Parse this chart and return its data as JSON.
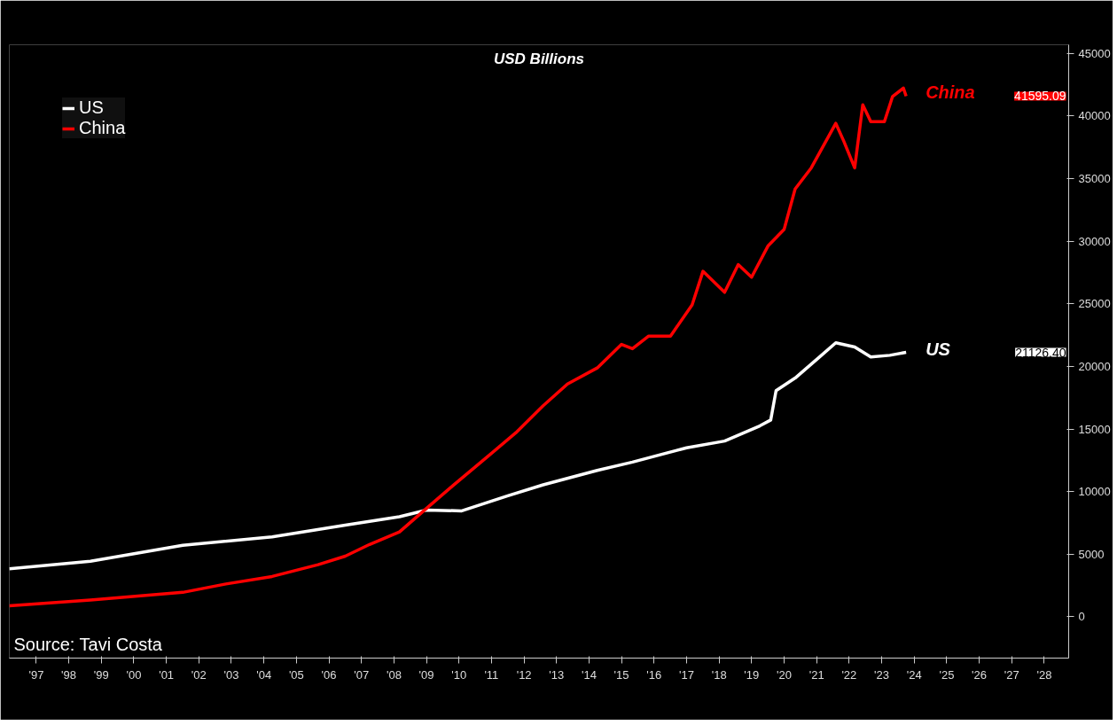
{
  "chart_data": {
    "type": "line",
    "subtitle": "USD Billions",
    "xlim": [
      "1996-09",
      "2029-04"
    ],
    "ylim": [
      -3300,
      45700
    ],
    "xticks": [
      {
        "value": "1997-07",
        "label": "'97"
      },
      {
        "value": "1998-07",
        "label": "'98"
      },
      {
        "value": "1999-07",
        "label": "'99"
      },
      {
        "value": "2000-07",
        "label": "'00"
      },
      {
        "value": "2001-07",
        "label": "'01"
      },
      {
        "value": "2002-07",
        "label": "'02"
      },
      {
        "value": "2003-07",
        "label": "'03"
      },
      {
        "value": "2004-07",
        "label": "'04"
      },
      {
        "value": "2005-07",
        "label": "'05"
      },
      {
        "value": "2006-07",
        "label": "'06"
      },
      {
        "value": "2007-07",
        "label": "'07"
      },
      {
        "value": "2008-07",
        "label": "'08"
      },
      {
        "value": "2009-07",
        "label": "'09"
      },
      {
        "value": "2010-07",
        "label": "'10"
      },
      {
        "value": "2011-07",
        "label": "'11"
      },
      {
        "value": "2012-07",
        "label": "'12"
      },
      {
        "value": "2013-07",
        "label": "'13"
      },
      {
        "value": "2014-07",
        "label": "'14"
      },
      {
        "value": "2015-07",
        "label": "'15"
      },
      {
        "value": "2016-07",
        "label": "'16"
      },
      {
        "value": "2017-07",
        "label": "'17"
      },
      {
        "value": "2018-07",
        "label": "'18"
      },
      {
        "value": "2019-07",
        "label": "'19"
      },
      {
        "value": "2020-07",
        "label": "'20"
      },
      {
        "value": "2021-07",
        "label": "'21"
      },
      {
        "value": "2022-07",
        "label": "'22"
      },
      {
        "value": "2023-07",
        "label": "'23"
      },
      {
        "value": "2024-07",
        "label": "'24"
      },
      {
        "value": "2025-07",
        "label": "'25"
      },
      {
        "value": "2026-07",
        "label": "'26"
      },
      {
        "value": "2027-07",
        "label": "'27"
      },
      {
        "value": "2028-07",
        "label": "'28"
      }
    ],
    "yticks": [
      0,
      5000,
      10000,
      15000,
      20000,
      25000,
      30000,
      35000,
      40000,
      45000
    ],
    "grid": false,
    "legend": "top left",
    "series": [
      {
        "name": "US",
        "color": "#ffffff",
        "x": [
          "1996-09",
          "1999-03",
          "2002-01",
          "2004-10",
          "2007-01",
          "2008-09",
          "2009-07",
          "2010-08",
          "2012-01",
          "2013-02",
          "2014-10",
          "2015-11",
          "2017-07",
          "2018-09",
          "2019-10",
          "2020-02",
          "2020-04",
          "2020-11",
          "2021-08",
          "2022-02",
          "2022-09",
          "2023-03",
          "2023-10",
          "2024-04"
        ],
        "values": [
          3830,
          4430,
          5710,
          6380,
          7320,
          7990,
          8530,
          8460,
          9670,
          10540,
          11690,
          12360,
          13500,
          14040,
          15250,
          15720,
          18070,
          19070,
          20750,
          21890,
          21560,
          20750,
          20890,
          21126.4
        ]
      },
      {
        "name": "China",
        "color": "#ff0000",
        "x": [
          "1996-09",
          "1999-03",
          "2002-01",
          "2003-05",
          "2004-10",
          "2006-03",
          "2007-01",
          "2007-10",
          "2008-09",
          "2009-07",
          "2010-04",
          "2011-05",
          "2012-04",
          "2013-02",
          "2013-11",
          "2014-10",
          "2015-07",
          "2015-11",
          "2016-05",
          "2017-01",
          "2017-09",
          "2018-01",
          "2018-09",
          "2019-02",
          "2019-07",
          "2020-01",
          "2020-07",
          "2020-11",
          "2021-05",
          "2022-02",
          "2022-05",
          "2022-09",
          "2022-12",
          "2023-03",
          "2023-08",
          "2023-11",
          "2024-03",
          "2024-04"
        ],
        "values": [
          870,
          1340,
          1950,
          2620,
          3220,
          4160,
          4840,
          5780,
          6780,
          8660,
          10340,
          12690,
          14710,
          16860,
          18600,
          19880,
          21760,
          21420,
          22430,
          22430,
          24920,
          27600,
          25920,
          28140,
          27130,
          29620,
          30960,
          34180,
          35860,
          39420,
          38010,
          35860,
          40900,
          39560,
          39560,
          41570,
          42240,
          41595.09
        ]
      }
    ],
    "annotations": [
      {
        "text": "China",
        "x": "2024-04",
        "y": 41595.09
      },
      {
        "text": "US",
        "x": "2024-04",
        "y": 21126.4
      },
      "21126.40",
      "41595.09",
      "Source: Tavi Costa"
    ]
  }
}
